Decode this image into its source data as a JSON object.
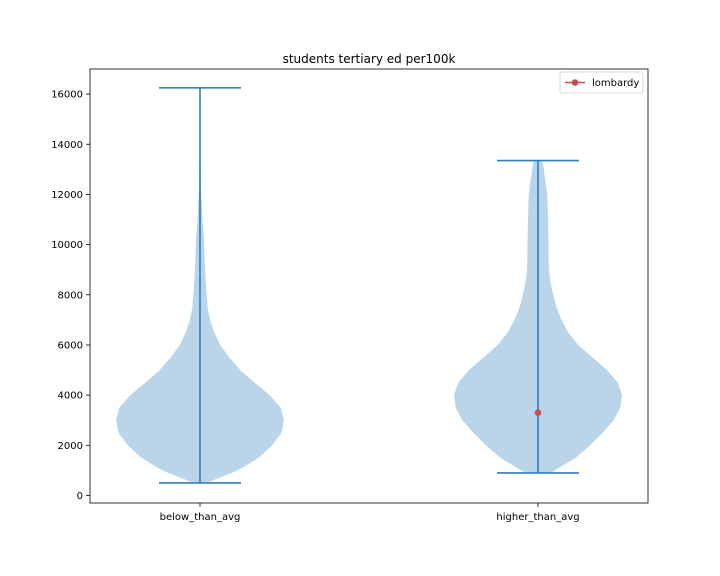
{
  "chart_data": {
    "type": "violin",
    "title": "students tertiary ed per100k",
    "xlabel": "",
    "ylabel": "",
    "categories": [
      "below_than_avg",
      "higher_than_avg"
    ],
    "ylim": [
      -300,
      17000
    ],
    "yticks": [
      0,
      2000,
      4000,
      6000,
      8000,
      10000,
      12000,
      14000,
      16000
    ],
    "ytick_labels": [
      "0",
      "2000",
      "4000",
      "6000",
      "8000",
      "10000",
      "12000",
      "14000",
      "16000"
    ],
    "grid": false,
    "violins": [
      {
        "category": "below_than_avg",
        "min": 500,
        "max": 16250,
        "density_profile": [
          [
            500,
            0.08
          ],
          [
            1000,
            0.45
          ],
          [
            1500,
            0.7
          ],
          [
            2000,
            0.86
          ],
          [
            2500,
            0.97
          ],
          [
            3000,
            1.0
          ],
          [
            3500,
            0.96
          ],
          [
            4000,
            0.83
          ],
          [
            4500,
            0.65
          ],
          [
            5000,
            0.48
          ],
          [
            5500,
            0.35
          ],
          [
            6000,
            0.24
          ],
          [
            6500,
            0.17
          ],
          [
            7000,
            0.12
          ],
          [
            7500,
            0.09
          ],
          [
            8000,
            0.08
          ],
          [
            9000,
            0.06
          ],
          [
            10000,
            0.05
          ],
          [
            11000,
            0.03
          ],
          [
            12000,
            0.015
          ],
          [
            13000,
            0.008
          ],
          [
            14000,
            0.004
          ],
          [
            15000,
            0.002
          ],
          [
            16250,
            0.0
          ]
        ]
      },
      {
        "category": "higher_than_avg",
        "min": 900,
        "max": 13350,
        "density_profile": [
          [
            900,
            0.15
          ],
          [
            1500,
            0.45
          ],
          [
            2000,
            0.62
          ],
          [
            2500,
            0.77
          ],
          [
            3000,
            0.9
          ],
          [
            3500,
            0.98
          ],
          [
            4000,
            1.0
          ],
          [
            4500,
            0.95
          ],
          [
            5000,
            0.82
          ],
          [
            5500,
            0.65
          ],
          [
            6000,
            0.48
          ],
          [
            6500,
            0.36
          ],
          [
            7000,
            0.28
          ],
          [
            7500,
            0.22
          ],
          [
            8000,
            0.18
          ],
          [
            8500,
            0.15
          ],
          [
            9000,
            0.13
          ],
          [
            10000,
            0.125
          ],
          [
            11000,
            0.12
          ],
          [
            12000,
            0.11
          ],
          [
            13000,
            0.07
          ],
          [
            13350,
            0.05
          ]
        ]
      }
    ],
    "points": [
      {
        "series": "lombardy",
        "category": "higher_than_avg",
        "y": 3300
      }
    ],
    "legend": {
      "position": "top-right",
      "entries": [
        "lombardy"
      ]
    },
    "colors": {
      "violin_fill": "#bad5ea",
      "violin_lines": "#2f7ebc",
      "point": "#c44e52"
    }
  }
}
